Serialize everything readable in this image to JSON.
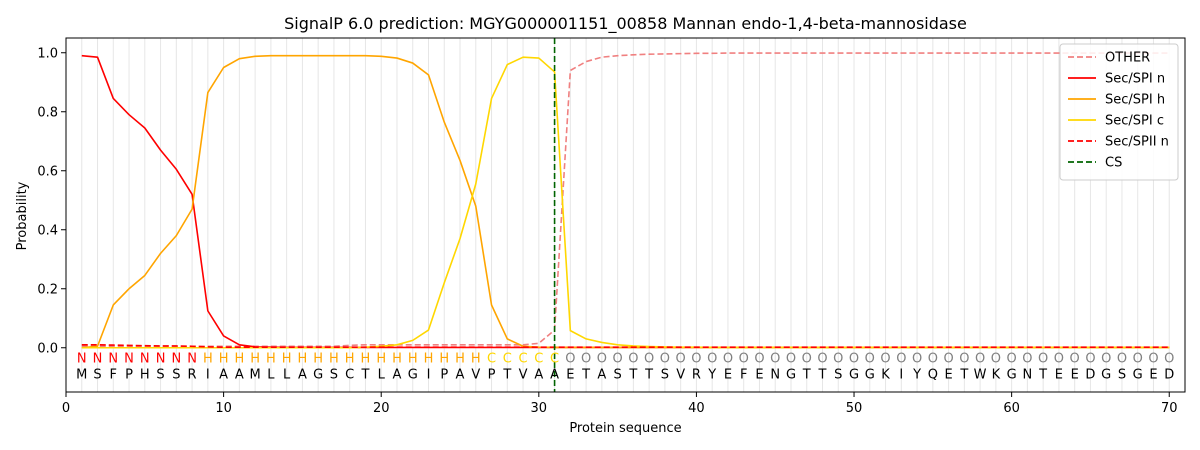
{
  "chart_data": {
    "type": "line",
    "title": "SignalP 6.0 prediction: MGYG000001151_00858 Mannan endo-1,4-beta-mannosidase",
    "xlabel": "Protein sequence",
    "ylabel": "Probability",
    "xlim": [
      0,
      71
    ],
    "ylim": [
      -0.15,
      1.05
    ],
    "xticks": [
      "0",
      "10",
      "20",
      "30",
      "40",
      "50",
      "60",
      "70"
    ],
    "yticks": [
      "0.0",
      "0.2",
      "0.4",
      "0.6",
      "0.8",
      "1.0"
    ],
    "legend_position": "top-right",
    "cleavage_site": 31,
    "sequence": [
      "M",
      "S",
      "F",
      "P",
      "H",
      "S",
      "S",
      "R",
      "I",
      "A",
      "A",
      "M",
      "L",
      "L",
      "A",
      "G",
      "S",
      "C",
      "T",
      "L",
      "A",
      "G",
      "I",
      "P",
      "A",
      "V",
      "P",
      "T",
      "V",
      "A",
      "A",
      "E",
      "T",
      "A",
      "S",
      "T",
      "T",
      "S",
      "V",
      "R",
      "Y",
      "E",
      "F",
      "E",
      "N",
      "G",
      "T",
      "T",
      "S",
      "G",
      "G",
      "K",
      "I",
      "Y",
      "Q",
      "E",
      "T",
      "W",
      "K",
      "G",
      "N",
      "T",
      "E",
      "E",
      "D",
      "G",
      "S",
      "G",
      "E",
      "D"
    ],
    "region_labels": [
      "N",
      "N",
      "N",
      "N",
      "N",
      "N",
      "N",
      "N",
      "H",
      "H",
      "H",
      "H",
      "H",
      "H",
      "H",
      "H",
      "H",
      "H",
      "H",
      "H",
      "H",
      "H",
      "H",
      "H",
      "H",
      "H",
      "C",
      "C",
      "C",
      "C",
      "C",
      "O",
      "O",
      "O",
      "O",
      "O",
      "O",
      "O",
      "O",
      "O",
      "O",
      "O",
      "O",
      "O",
      "O",
      "O",
      "O",
      "O",
      "O",
      "O",
      "O",
      "O",
      "O",
      "O",
      "O",
      "O",
      "O",
      "O",
      "O",
      "O",
      "O",
      "O",
      "O",
      "O",
      "O",
      "O",
      "O",
      "O",
      "O",
      "O"
    ],
    "region_colors": {
      "N": "#ff0000",
      "H": "#ffa500",
      "C": "#ffd700",
      "O": "#808080"
    },
    "series": [
      {
        "name": "OTHER",
        "color": "#f08080",
        "dash": "dashed",
        "values": [
          0.005,
          0.005,
          0.005,
          0.005,
          0.005,
          0.005,
          0.005,
          0.005,
          0.005,
          0.005,
          0.005,
          0.005,
          0.005,
          0.005,
          0.005,
          0.005,
          0.005,
          0.008,
          0.01,
          0.01,
          0.01,
          0.01,
          0.01,
          0.01,
          0.01,
          0.01,
          0.01,
          0.01,
          0.01,
          0.015,
          0.06,
          0.94,
          0.97,
          0.985,
          0.99,
          0.993,
          0.995,
          0.996,
          0.997,
          0.998,
          0.998,
          0.999,
          0.999,
          0.999,
          0.999,
          0.999,
          0.999,
          0.999,
          0.999,
          0.999,
          0.999,
          0.999,
          0.999,
          0.999,
          0.999,
          0.999,
          0.999,
          0.999,
          0.999,
          0.999,
          0.999,
          0.999,
          0.999,
          0.999,
          0.999,
          0.999,
          0.999,
          0.999,
          0.999,
          0.999
        ]
      },
      {
        "name": "Sec/SPI n",
        "color": "#ff0000",
        "dash": "solid",
        "values": [
          0.99,
          0.985,
          0.845,
          0.79,
          0.745,
          0.67,
          0.605,
          0.52,
          0.125,
          0.04,
          0.01,
          0.003,
          0.002,
          0.001,
          0.001,
          0.001,
          0.001,
          0.001,
          0.001,
          0.001,
          0.001,
          0.001,
          0.001,
          0.001,
          0.001,
          0.001,
          0.001,
          0.001,
          0.001,
          0.001,
          0.001,
          0.001,
          0.001,
          0.001,
          0.001,
          0.001,
          0.001,
          0.001,
          0.001,
          0.001,
          0.001,
          0.001,
          0.001,
          0.001,
          0.001,
          0.001,
          0.001,
          0.001,
          0.001,
          0.001,
          0.001,
          0.001,
          0.001,
          0.001,
          0.001,
          0.001,
          0.001,
          0.001,
          0.001,
          0.001,
          0.001,
          0.001,
          0.001,
          0.001,
          0.001,
          0.001,
          0.001,
          0.001,
          0.001,
          0.001
        ]
      },
      {
        "name": "Sec/SPI h",
        "color": "#ffa500",
        "dash": "solid",
        "values": [
          0.0,
          0.005,
          0.145,
          0.2,
          0.245,
          0.32,
          0.38,
          0.47,
          0.865,
          0.95,
          0.98,
          0.988,
          0.99,
          0.99,
          0.99,
          0.99,
          0.99,
          0.99,
          0.99,
          0.988,
          0.982,
          0.965,
          0.925,
          0.765,
          0.635,
          0.48,
          0.145,
          0.03,
          0.005,
          0.002,
          0.001,
          0.001,
          0.001,
          0.001,
          0.001,
          0.001,
          0.001,
          0.001,
          0.001,
          0.001,
          0.001,
          0.001,
          0.001,
          0.001,
          0.001,
          0.001,
          0.001,
          0.001,
          0.001,
          0.001,
          0.001,
          0.001,
          0.001,
          0.001,
          0.001,
          0.001,
          0.001,
          0.001,
          0.001,
          0.001,
          0.001,
          0.001,
          0.001,
          0.001,
          0.001,
          0.001,
          0.001,
          0.001,
          0.001,
          0.001
        ]
      },
      {
        "name": "Sec/SPI c",
        "color": "#ffd700",
        "dash": "solid",
        "values": [
          0.0,
          0.0,
          0.0,
          0.0,
          0.0,
          0.0,
          0.0,
          0.0,
          0.0,
          0.0,
          0.0,
          0.0,
          0.0,
          0.0,
          0.0,
          0.0,
          0.0,
          0.0,
          0.002,
          0.005,
          0.01,
          0.025,
          0.06,
          0.22,
          0.37,
          0.555,
          0.845,
          0.96,
          0.985,
          0.982,
          0.935,
          0.058,
          0.03,
          0.018,
          0.01,
          0.006,
          0.004,
          0.003,
          0.002,
          0.002,
          0.001,
          0.001,
          0.001,
          0.001,
          0.001,
          0.001,
          0.001,
          0.001,
          0.001,
          0.001,
          0.001,
          0.001,
          0.001,
          0.001,
          0.001,
          0.001,
          0.001,
          0.001,
          0.001,
          0.001,
          0.001,
          0.001,
          0.001,
          0.001,
          0.001,
          0.001,
          0.001,
          0.001,
          0.001,
          0.001
        ]
      },
      {
        "name": "Sec/SPII n",
        "color": "#ff0000",
        "dash": "dashed",
        "values": [
          0.01,
          0.01,
          0.009,
          0.008,
          0.007,
          0.006,
          0.006,
          0.005,
          0.003,
          0.002,
          0.002,
          0.002,
          0.002,
          0.002,
          0.002,
          0.002,
          0.002,
          0.002,
          0.002,
          0.002,
          0.002,
          0.002,
          0.002,
          0.002,
          0.002,
          0.002,
          0.002,
          0.002,
          0.002,
          0.002,
          0.002,
          0.002,
          0.002,
          0.002,
          0.002,
          0.002,
          0.002,
          0.002,
          0.002,
          0.002,
          0.002,
          0.002,
          0.002,
          0.002,
          0.002,
          0.002,
          0.002,
          0.002,
          0.002,
          0.002,
          0.002,
          0.002,
          0.002,
          0.002,
          0.002,
          0.002,
          0.002,
          0.002,
          0.002,
          0.002,
          0.002,
          0.002,
          0.002,
          0.002,
          0.002,
          0.002,
          0.002,
          0.002,
          0.002,
          0.002
        ]
      }
    ],
    "cs_legend": {
      "name": "CS",
      "color": "#006400"
    }
  }
}
